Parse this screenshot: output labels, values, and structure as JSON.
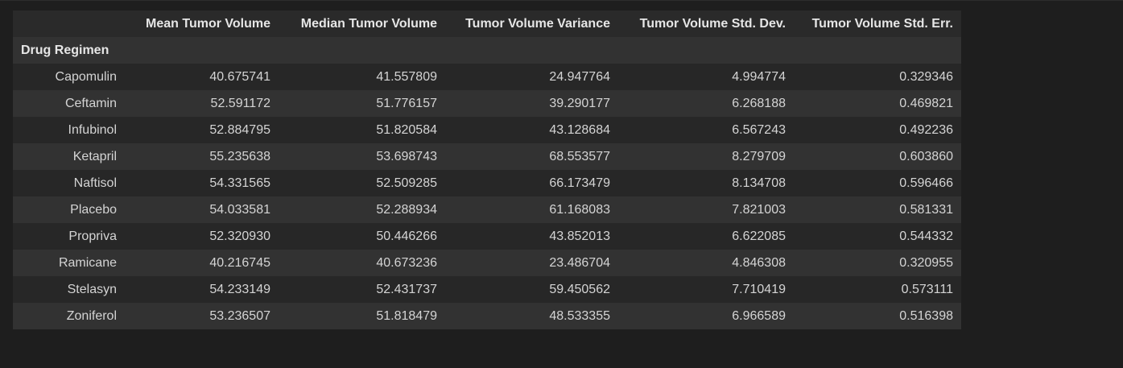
{
  "table": {
    "index_name": "Drug Regimen",
    "columns": [
      "Mean Tumor Volume",
      "Median Tumor Volume",
      "Tumor Volume Variance",
      "Tumor Volume Std. Dev.",
      "Tumor Volume Std. Err."
    ],
    "rows": [
      {
        "label": "Capomulin",
        "values": [
          "40.675741",
          "41.557809",
          "24.947764",
          "4.994774",
          "0.329346"
        ]
      },
      {
        "label": "Ceftamin",
        "values": [
          "52.591172",
          "51.776157",
          "39.290177",
          "6.268188",
          "0.469821"
        ]
      },
      {
        "label": "Infubinol",
        "values": [
          "52.884795",
          "51.820584",
          "43.128684",
          "6.567243",
          "0.492236"
        ]
      },
      {
        "label": "Ketapril",
        "values": [
          "55.235638",
          "53.698743",
          "68.553577",
          "8.279709",
          "0.603860"
        ]
      },
      {
        "label": "Naftisol",
        "values": [
          "54.331565",
          "52.509285",
          "66.173479",
          "8.134708",
          "0.596466"
        ]
      },
      {
        "label": "Placebo",
        "values": [
          "54.033581",
          "52.288934",
          "61.168083",
          "7.821003",
          "0.581331"
        ]
      },
      {
        "label": "Propriva",
        "values": [
          "52.320930",
          "50.446266",
          "43.852013",
          "6.622085",
          "0.544332"
        ]
      },
      {
        "label": "Ramicane",
        "values": [
          "40.216745",
          "40.673236",
          "23.486704",
          "4.846308",
          "0.320955"
        ]
      },
      {
        "label": "Stelasyn",
        "values": [
          "54.233149",
          "52.431737",
          "59.450562",
          "7.710419",
          "0.573111"
        ]
      },
      {
        "label": "Zoniferol",
        "values": [
          "53.236507",
          "51.818479",
          "48.533355",
          "6.966589",
          "0.516398"
        ]
      }
    ]
  },
  "colors": {
    "background": "#1e1e1e",
    "header_row": "#2a2a2a",
    "index_name_row": "#323232",
    "row_odd": "#272727",
    "row_even": "#323232",
    "text": "#d4d4d4"
  }
}
